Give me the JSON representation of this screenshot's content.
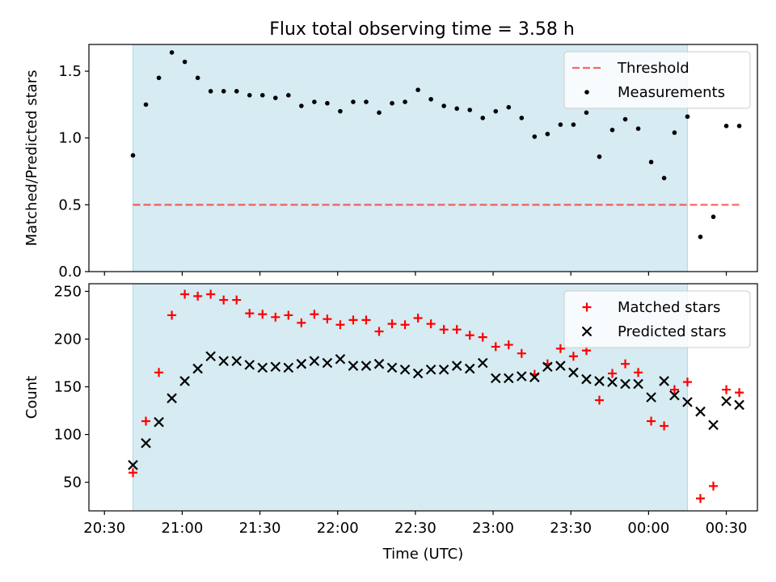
{
  "figure": {
    "title": "Flux total observing time = 3.58 h"
  },
  "colors": {
    "shade": "#add8e6",
    "threshold": "#ff0000",
    "measurements": "#000000",
    "matched": "#ff0000",
    "predicted": "#000000"
  },
  "chart_data": [
    {
      "type": "scatter",
      "title": "Flux total observing time = 3.58 h",
      "xlabel": "",
      "ylabel": "Matched/Predicted stars",
      "x_unit": "minutes after 20:30 UTC",
      "xlim": [
        -2,
        84
      ],
      "ylim": [
        0,
        1.7
      ],
      "yticks": [
        0.0,
        0.5,
        1.0,
        1.5
      ],
      "ytick_labels": [
        "0.0",
        "0.5",
        "1.0",
        "1.5"
      ],
      "shaded_span": [
        "20:41",
        "00:15"
      ],
      "legend_position": "top-right",
      "series": [
        {
          "name": "Threshold",
          "kind": "line",
          "style": "dashed",
          "x": [
            "20:41",
            "00:35"
          ],
          "y": [
            0.5,
            0.5
          ]
        },
        {
          "name": "Measurements",
          "kind": "points",
          "x": [
            "20:41",
            "20:46",
            "20:51",
            "20:56",
            "21:01",
            "21:06",
            "21:11",
            "21:16",
            "21:21",
            "21:26",
            "21:31",
            "21:36",
            "21:41",
            "21:46",
            "21:51",
            "21:56",
            "22:01",
            "22:06",
            "22:11",
            "22:16",
            "22:21",
            "22:26",
            "22:31",
            "22:36",
            "22:41",
            "22:46",
            "22:51",
            "22:56",
            "23:01",
            "23:06",
            "23:11",
            "23:16",
            "23:21",
            "23:26",
            "23:31",
            "23:36",
            "23:41",
            "23:46",
            "23:51",
            "23:56",
            "00:01",
            "00:06",
            "00:10",
            "00:15",
            "00:20",
            "00:25",
            "00:30",
            "00:35"
          ],
          "y": [
            0.87,
            1.25,
            1.45,
            1.64,
            1.57,
            1.45,
            1.35,
            1.35,
            1.35,
            1.32,
            1.32,
            1.3,
            1.32,
            1.24,
            1.27,
            1.26,
            1.2,
            1.27,
            1.27,
            1.19,
            1.26,
            1.27,
            1.36,
            1.29,
            1.24,
            1.22,
            1.21,
            1.15,
            1.2,
            1.23,
            1.15,
            1.01,
            1.03,
            1.1,
            1.1,
            1.19,
            0.86,
            1.06,
            1.14,
            1.07,
            0.82,
            0.7,
            1.04,
            1.16,
            0.26,
            0.41,
            1.09,
            1.09
          ]
        }
      ]
    },
    {
      "type": "scatter",
      "title": "",
      "xlabel": "Time (UTC)",
      "ylabel": "Count",
      "x_unit": "minutes after 20:30 UTC",
      "xlim": [
        -2,
        84
      ],
      "ylim": [
        20,
        258
      ],
      "yticks": [
        50,
        100,
        150,
        200,
        250
      ],
      "ytick_labels": [
        "50",
        "100",
        "150",
        "200",
        "250"
      ],
      "xticks": [
        0,
        10,
        20,
        30,
        40,
        50,
        60,
        70,
        80
      ],
      "xtick_labels": [
        "20:30",
        "21:00",
        "21:30",
        "22:00",
        "22:30",
        "23:00",
        "23:30",
        "00:00",
        "00:30"
      ],
      "shaded_span": [
        "20:41",
        "00:15"
      ],
      "legend_position": "top-right",
      "series": [
        {
          "name": "Matched stars",
          "kind": "plus",
          "x": [
            "20:41",
            "20:46",
            "20:51",
            "20:56",
            "21:01",
            "21:06",
            "21:11",
            "21:16",
            "21:21",
            "21:26",
            "21:31",
            "21:36",
            "21:41",
            "21:46",
            "21:51",
            "21:56",
            "22:01",
            "22:06",
            "22:11",
            "22:16",
            "22:21",
            "22:26",
            "22:31",
            "22:36",
            "22:41",
            "22:46",
            "22:51",
            "22:56",
            "23:01",
            "23:06",
            "23:11",
            "23:16",
            "23:21",
            "23:26",
            "23:31",
            "23:36",
            "23:41",
            "23:46",
            "23:51",
            "23:56",
            "00:01",
            "00:06",
            "00:10",
            "00:15",
            "00:20",
            "00:25",
            "00:30",
            "00:35"
          ],
          "y": [
            60,
            114,
            165,
            225,
            247,
            245,
            247,
            241,
            241,
            227,
            226,
            223,
            225,
            217,
            226,
            221,
            215,
            220,
            220,
            208,
            216,
            215,
            222,
            216,
            210,
            210,
            204,
            202,
            192,
            194,
            185,
            163,
            174,
            190,
            182,
            188,
            136,
            164,
            174,
            165,
            114,
            109,
            147,
            155,
            33,
            46,
            147,
            144
          ]
        },
        {
          "name": "Predicted stars",
          "kind": "x",
          "x": [
            "20:41",
            "20:46",
            "20:51",
            "20:56",
            "21:01",
            "21:06",
            "21:11",
            "21:16",
            "21:21",
            "21:26",
            "21:31",
            "21:36",
            "21:41",
            "21:46",
            "21:51",
            "21:56",
            "22:01",
            "22:06",
            "22:11",
            "22:16",
            "22:21",
            "22:26",
            "22:31",
            "22:36",
            "22:41",
            "22:46",
            "22:51",
            "22:56",
            "23:01",
            "23:06",
            "23:11",
            "23:16",
            "23:21",
            "23:26",
            "23:31",
            "23:36",
            "23:41",
            "23:46",
            "23:51",
            "23:56",
            "00:01",
            "00:06",
            "00:10",
            "00:15",
            "00:20",
            "00:25",
            "00:30",
            "00:35"
          ],
          "y": [
            68,
            91,
            113,
            138,
            156,
            169,
            182,
            177,
            177,
            173,
            170,
            171,
            170,
            174,
            177,
            175,
            179,
            172,
            172,
            174,
            170,
            168,
            164,
            168,
            168,
            172,
            169,
            175,
            159,
            159,
            161,
            160,
            171,
            172,
            165,
            158,
            156,
            155,
            153,
            153,
            139,
            156,
            141,
            134,
            124,
            110,
            135,
            131
          ]
        }
      ]
    }
  ]
}
